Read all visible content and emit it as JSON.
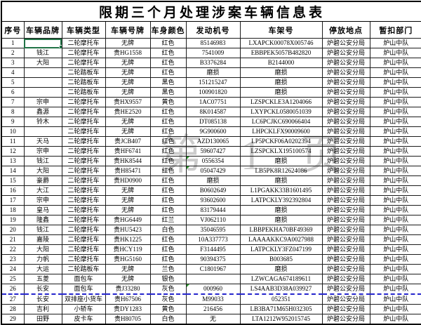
{
  "title": "限期三个月处理涉案车辆信息表",
  "columns": [
    "序号",
    "车辆品牌",
    "车辆类型",
    "车辆号牌",
    "车身颜色",
    "发动机号",
    "车架号",
    "停放地点",
    "暂扣部门"
  ],
  "rows": [
    [
      "1",
      "",
      "二轮摩托车",
      "无牌",
      "红色",
      "85146983",
      "LXAPCK00078X005746",
      "炉碧公安分局",
      "炉山中队"
    ],
    [
      "2",
      "钱江",
      "二轮摩托车",
      "贵HG1558",
      "红色",
      "7541009",
      "EBBPEK5057B482820",
      "炉碧公安分局",
      "炉山中队"
    ],
    [
      "3",
      "大阳",
      "二轮摩托车",
      "无牌",
      "红色",
      "B3376284",
      "B2144000",
      "炉碧公安分局",
      "炉山中队"
    ],
    [
      "4",
      "",
      "二轮踏板车",
      "无牌",
      "红色",
      "磨损",
      "磨损",
      "炉碧公安分局",
      "炉山中队"
    ],
    [
      "5",
      "",
      "二轮踏板车",
      "无牌",
      "黑色",
      "151215247",
      "磨损",
      "炉碧公安分局",
      "炉山中队"
    ],
    [
      "6",
      "",
      "二轮踏板车",
      "无牌",
      "黑色",
      "100901820",
      "磨损",
      "炉碧公安分局",
      "炉山中队"
    ],
    [
      "7",
      "宗申",
      "二轮摩托车",
      "贵HX9557",
      "黄色",
      "1AC07751",
      "LZSPCKLE3A1204066",
      "炉碧公安分局",
      "炉山中队"
    ],
    [
      "8",
      "鑫源",
      "二轮摩托车",
      "贵HE2520",
      "红色",
      "8K014587",
      "LXYPCKL0580051039",
      "炉碧公安分局",
      "炉山中队"
    ],
    [
      "9",
      "铃木",
      "二轮摩托车",
      "无牌",
      "红色",
      "DT085138",
      "LC6PCJKC690066404",
      "炉碧公安分局",
      "炉山中队"
    ],
    [
      "10",
      "",
      "二轮摩托车",
      "无牌",
      "红色",
      "9G900600",
      "LHPCKLFX90009600",
      "炉碧公安分局",
      "炉山中队"
    ],
    [
      "11",
      "天马",
      "二轮摩托车",
      "贵JCB407",
      "红色",
      "AZD130065",
      "LP5PCKF06A0202394",
      "炉碧公安分局",
      "炉山中队"
    ],
    [
      "12",
      "宗申",
      "二轮摩托车",
      "贵HF6741",
      "红色",
      "59607427",
      "LZSPCKLX195100574",
      "炉碧公安分局",
      "炉山中队"
    ],
    [
      "13",
      "钱江",
      "二轮摩托车",
      "贵HK8544",
      "红色",
      "0556354",
      "磨损",
      "炉碧公安分局",
      "炉山中队"
    ],
    [
      "14",
      "大阳",
      "二轮摩托车",
      "贵H85471",
      "红色",
      "05047429",
      "LB5PK8R12624086",
      "炉碧公安分局",
      "炉山中队"
    ],
    [
      "15",
      "豪爵",
      "二轮摩托车",
      "贵HD0900",
      "红色",
      "磨损",
      "磨损",
      "炉碧公安分局",
      "炉山中队"
    ],
    [
      "16",
      "大江",
      "二轮摩托车",
      "无牌",
      "红色",
      "B0602649",
      "L1PGAKK33B1601495",
      "炉碧公安分局",
      "炉山中队"
    ],
    [
      "17",
      "宗申",
      "二轮摩托车",
      "无牌",
      "红色",
      "93602600",
      "LATPCKLY392392804",
      "炉碧公安分局",
      "炉山中队"
    ],
    [
      "18",
      "皇马",
      "二轮摩托车",
      "无牌",
      "红色",
      "83179444",
      "磨损",
      "炉碧公安分局",
      "炉山中队"
    ],
    [
      "19",
      "隆鑫",
      "二轮摩托车",
      "贵HG6449",
      "红兰",
      "VJ062110",
      "磨损",
      "炉碧公安分局",
      "炉山中队"
    ],
    [
      "20",
      "钱江",
      "二轮摩托车",
      "贵HU5423",
      "白色",
      "35046595",
      "LBBPEKHA70BF49369",
      "炉碧公安分局",
      "炉山中队"
    ],
    [
      "21",
      "嘉陵",
      "二轮摩托车",
      "贵HK1225",
      "红色",
      "10A337773",
      "LAAAAKKC9A0027988",
      "炉碧公安分局",
      "炉山中队"
    ],
    [
      "22",
      "大阳",
      "二轮摩托车",
      "贵HCY119",
      "红色",
      "F3144495",
      "LATPCKLY3FZ047199",
      "炉碧公安分局",
      "炉山中队"
    ],
    [
      "23",
      "力帆",
      "二轮摩托车",
      "贵HG5160",
      "红色",
      "90394375",
      "B003685",
      "炉碧公安分局",
      "炉山中队"
    ],
    [
      "24",
      "大运",
      "二轮踏板车",
      "无牌",
      "兰色",
      "C1801967",
      "磨损",
      "炉碧公安分局",
      "炉山中队"
    ],
    [
      "25",
      "五菱",
      "面包车",
      "无牌",
      "银色",
      "",
      "LZWCAGA674189611",
      "炉碧公安分局",
      "炉山中队"
    ],
    [
      "26",
      "长安",
      "面包车",
      "贵J33280",
      "灰色",
      "000960",
      "LS4AAB3D38A039927",
      "炉碧公安分局",
      "炉山中队"
    ],
    [
      "27",
      "长安",
      "双排座小货车",
      "贵H67506",
      "灰色",
      "M99033",
      "052351",
      "炉碧公安分局",
      "炉山中队"
    ],
    [
      "28",
      "吉利",
      "小轿车",
      "贵DY1283",
      "黄色",
      "216456",
      "LB3BA71M65H032305",
      "炉碧公安分局",
      "炉山中队"
    ],
    [
      "29",
      "田野",
      "皮卡车",
      "贵H80705",
      "白色",
      "无",
      "LTA1212W952015745",
      "炉碧公安分局",
      "炉山中队"
    ]
  ],
  "watermark": {
    "text": "第 1 页"
  },
  "annotations": {
    "active_cell": {
      "row": 0,
      "col": 1
    },
    "error_marker_cells": [
      {
        "row": 12,
        "col": 5
      },
      {
        "row": 13,
        "col": 5
      },
      {
        "row": 25,
        "col": 5
      }
    ],
    "page_break_before_row": 26,
    "colors": {
      "selection_green": "#217346",
      "error_triangle_green": "#2e9b2e",
      "page_break_blue": "#2525cc",
      "grid_line": "#1c1c1c"
    }
  }
}
